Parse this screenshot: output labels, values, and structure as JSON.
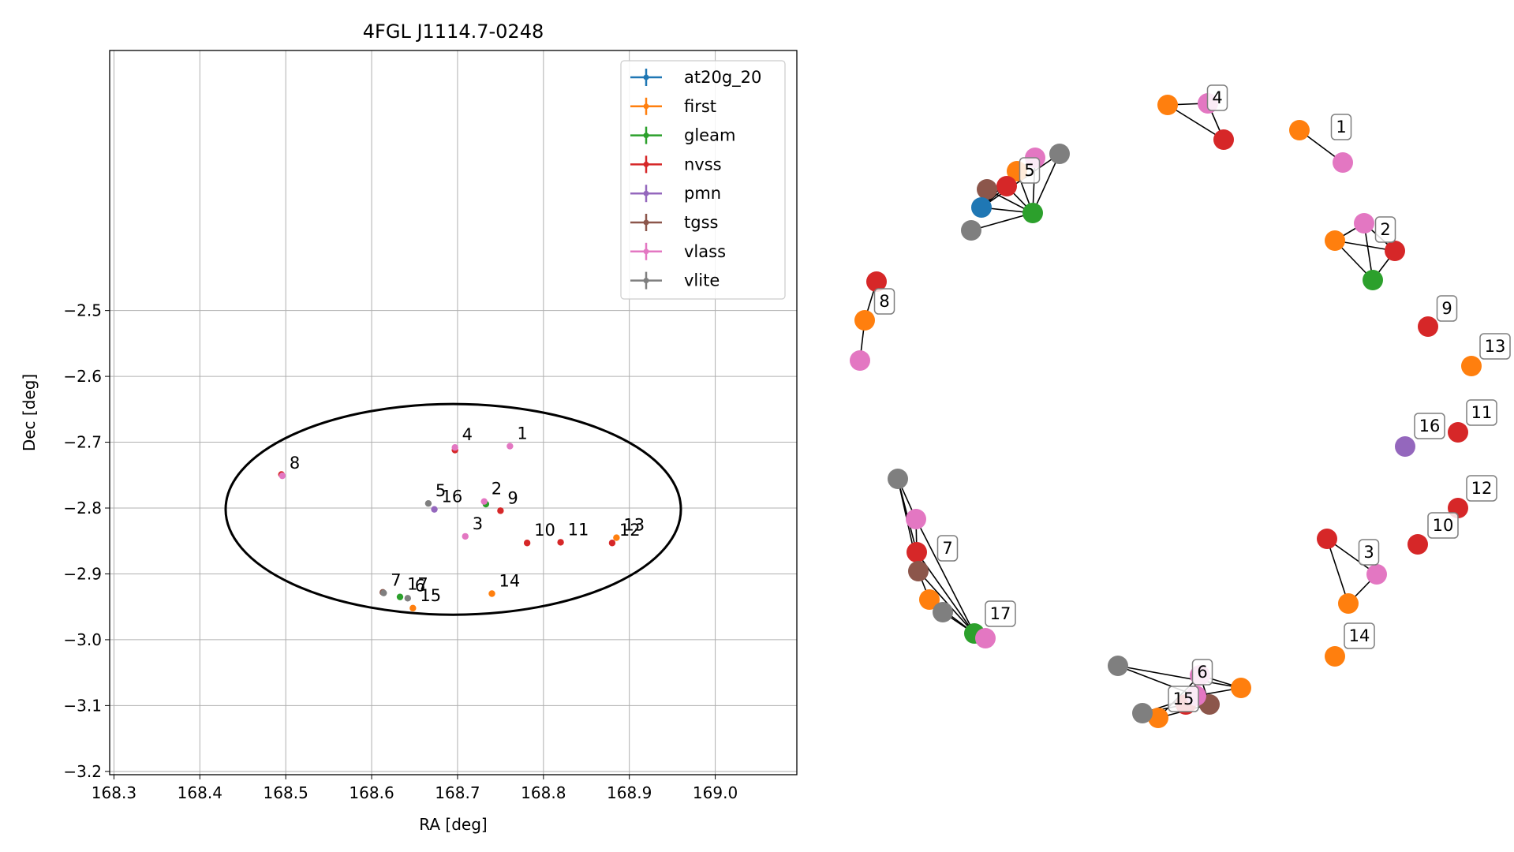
{
  "chart_data": [
    {
      "type": "scatter",
      "title": "4FGL J1114.7-0248",
      "xlabel": "RA [deg]",
      "ylabel": "Dec [deg]",
      "xlim": [
        168.295,
        169.095
      ],
      "ylim": [
        -3.205,
        -2.105
      ],
      "xticks": [
        168.3,
        168.4,
        168.5,
        168.6,
        168.7,
        168.8,
        168.9,
        169.0
      ],
      "xtick_labels": [
        "168.3",
        "168.4",
        "168.5",
        "168.6",
        "168.7",
        "168.8",
        "168.9",
        "169.0"
      ],
      "yticks": [
        -2.5,
        -2.6,
        -2.7,
        -2.8,
        -2.9,
        -3.0,
        -3.1,
        -3.2
      ],
      "ytick_labels": [
        "−2.5",
        "−2.6",
        "−2.7",
        "−2.8",
        "−2.9",
        "−3.0",
        "−3.1",
        "−3.2"
      ],
      "grid": true,
      "legend_position": "top-right",
      "ellipse": {
        "center": [
          168.695,
          -2.802
        ],
        "semi_axis_ra": 0.265,
        "semi_axis_dec": 0.16
      },
      "series": [
        {
          "name": "at20g_20",
          "color": "#1f77b4",
          "points": []
        },
        {
          "name": "first",
          "color": "#ff7f0e",
          "points": [
            [
              168.885,
              -2.845
            ],
            [
              168.74,
              -2.93
            ],
            [
              168.648,
              -2.952
            ]
          ]
        },
        {
          "name": "gleam",
          "color": "#2ca02c",
          "points": [
            [
              168.733,
              -2.794
            ],
            [
              168.633,
              -2.935
            ]
          ]
        },
        {
          "name": "nvss",
          "color": "#d62728",
          "points": [
            [
              168.495,
              -2.749
            ],
            [
              168.697,
              -2.712
            ],
            [
              168.75,
              -2.804
            ],
            [
              168.781,
              -2.853
            ],
            [
              168.82,
              -2.852
            ],
            [
              168.88,
              -2.853
            ]
          ]
        },
        {
          "name": "pmn",
          "color": "#9467bd",
          "points": [
            [
              168.673,
              -2.802
            ]
          ]
        },
        {
          "name": "tgss",
          "color": "#8c564b",
          "points": [
            [
              168.613,
              -2.928
            ]
          ]
        },
        {
          "name": "vlass",
          "color": "#e377c2",
          "points": [
            [
              168.496,
              -2.751
            ],
            [
              168.697,
              -2.708
            ],
            [
              168.761,
              -2.706
            ],
            [
              168.731,
              -2.79
            ],
            [
              168.709,
              -2.843
            ]
          ]
        },
        {
          "name": "vlite",
          "color": "#7f7f7f",
          "points": [
            [
              168.666,
              -2.793
            ],
            [
              168.614,
              -2.929
            ],
            [
              168.642,
              -2.937
            ]
          ]
        }
      ],
      "annotations": [
        {
          "text": "1",
          "x": 168.761,
          "y": -2.706
        },
        {
          "text": "2",
          "x": 168.731,
          "y": -2.79
        },
        {
          "text": "3",
          "x": 168.709,
          "y": -2.843
        },
        {
          "text": "4",
          "x": 168.697,
          "y": -2.708
        },
        {
          "text": "5",
          "x": 168.666,
          "y": -2.793
        },
        {
          "text": "6",
          "x": 168.642,
          "y": -2.937
        },
        {
          "text": "7",
          "x": 168.614,
          "y": -2.929
        },
        {
          "text": "8",
          "x": 168.496,
          "y": -2.751
        },
        {
          "text": "9",
          "x": 168.75,
          "y": -2.804
        },
        {
          "text": "10",
          "x": 168.781,
          "y": -2.853
        },
        {
          "text": "11",
          "x": 168.82,
          "y": -2.852
        },
        {
          "text": "12",
          "x": 168.88,
          "y": -2.853
        },
        {
          "text": "13",
          "x": 168.885,
          "y": -2.845
        },
        {
          "text": "14",
          "x": 168.74,
          "y": -2.93
        },
        {
          "text": "15",
          "x": 168.648,
          "y": -2.952
        },
        {
          "text": "16",
          "x": 168.673,
          "y": -2.802
        },
        {
          "text": "17",
          "x": 168.633,
          "y": -2.935
        }
      ]
    },
    {
      "type": "network",
      "nodes": [
        {
          "id": "n1",
          "series": "first"
        },
        {
          "id": "n2",
          "series": "vlass",
          "cluster": "1"
        },
        {
          "id": "n3",
          "series": "first"
        },
        {
          "id": "n4",
          "series": "vlass",
          "cluster": "4"
        },
        {
          "id": "n5",
          "series": "nvss"
        },
        {
          "id": "n6",
          "series": "vlite"
        },
        {
          "id": "n7",
          "series": "vlass"
        },
        {
          "id": "n8",
          "series": "first",
          "cluster": "5"
        },
        {
          "id": "n9",
          "series": "nvss"
        },
        {
          "id": "n10",
          "series": "tgss"
        },
        {
          "id": "n11",
          "series": "at20g_20"
        },
        {
          "id": "n12",
          "series": "gleam"
        },
        {
          "id": "n13",
          "series": "vlite"
        },
        {
          "id": "n14",
          "series": "vlass"
        },
        {
          "id": "n15",
          "series": "first"
        },
        {
          "id": "n16",
          "series": "nvss",
          "cluster": "2"
        },
        {
          "id": "n17",
          "series": "gleam"
        },
        {
          "id": "n18",
          "series": "nvss"
        },
        {
          "id": "n19",
          "series": "first",
          "cluster": "8"
        },
        {
          "id": "n20",
          "series": "vlass"
        },
        {
          "id": "n21",
          "series": "nvss",
          "cluster": "9"
        },
        {
          "id": "n22",
          "series": "first",
          "cluster": "13"
        },
        {
          "id": "n23",
          "series": "pmn",
          "cluster": "16"
        },
        {
          "id": "n24",
          "series": "nvss",
          "cluster": "11"
        },
        {
          "id": "n25",
          "series": "nvss",
          "cluster": "12"
        },
        {
          "id": "n26",
          "series": "nvss",
          "cluster": "10"
        },
        {
          "id": "n27",
          "series": "nvss"
        },
        {
          "id": "n28",
          "series": "vlass",
          "cluster": "3"
        },
        {
          "id": "n29",
          "series": "first"
        },
        {
          "id": "n30",
          "series": "first",
          "cluster": "14"
        },
        {
          "id": "n31",
          "series": "vlite"
        },
        {
          "id": "n32",
          "series": "vlass"
        },
        {
          "id": "n33",
          "series": "nvss",
          "cluster": "7"
        },
        {
          "id": "n34",
          "series": "tgss"
        },
        {
          "id": "n35",
          "series": "first"
        },
        {
          "id": "n36",
          "series": "vlite"
        },
        {
          "id": "n37",
          "series": "gleam",
          "cluster": "17"
        },
        {
          "id": "n38",
          "series": "vlass"
        },
        {
          "id": "n39",
          "series": "vlite"
        },
        {
          "id": "n40",
          "series": "vlass",
          "cluster": "6"
        },
        {
          "id": "n41",
          "series": "first"
        },
        {
          "id": "n42",
          "series": "nvss"
        },
        {
          "id": "n43",
          "series": "tgss"
        },
        {
          "id": "n44",
          "series": "first"
        },
        {
          "id": "n45",
          "series": "vlite"
        },
        {
          "id": "n46",
          "series": "vlass",
          "cluster": "15"
        }
      ],
      "edges": [
        [
          "n1",
          "n2"
        ],
        [
          "n3",
          "n4"
        ],
        [
          "n3",
          "n5"
        ],
        [
          "n4",
          "n5"
        ],
        [
          "n12",
          "n6"
        ],
        [
          "n12",
          "n7"
        ],
        [
          "n12",
          "n8"
        ],
        [
          "n12",
          "n9"
        ],
        [
          "n12",
          "n10"
        ],
        [
          "n12",
          "n11"
        ],
        [
          "n12",
          "n13"
        ],
        [
          "n8",
          "n11"
        ],
        [
          "n9",
          "n11"
        ],
        [
          "n10",
          "n11"
        ],
        [
          "n11",
          "n13"
        ],
        [
          "n8",
          "n9"
        ],
        [
          "n7",
          "n8"
        ],
        [
          "n14",
          "n15"
        ],
        [
          "n14",
          "n16"
        ],
        [
          "n14",
          "n17"
        ],
        [
          "n15",
          "n16"
        ],
        [
          "n15",
          "n17"
        ],
        [
          "n16",
          "n17"
        ],
        [
          "n18",
          "n19"
        ],
        [
          "n19",
          "n20"
        ],
        [
          "n27",
          "n28"
        ],
        [
          "n27",
          "n29"
        ],
        [
          "n28",
          "n29"
        ],
        [
          "n31",
          "n32"
        ],
        [
          "n31",
          "n33"
        ],
        [
          "n31",
          "n34"
        ],
        [
          "n32",
          "n33"
        ],
        [
          "n33",
          "n34"
        ],
        [
          "n34",
          "n35"
        ],
        [
          "n32",
          "n37"
        ],
        [
          "n33",
          "n37"
        ],
        [
          "n34",
          "n37"
        ],
        [
          "n35",
          "n37"
        ],
        [
          "n36",
          "n37"
        ],
        [
          "n37",
          "n38"
        ],
        [
          "n39",
          "n41"
        ],
        [
          "n39",
          "n46"
        ],
        [
          "n40",
          "n41"
        ],
        [
          "n40",
          "n42"
        ],
        [
          "n40",
          "n43"
        ],
        [
          "n40",
          "n44"
        ],
        [
          "n42",
          "n43"
        ],
        [
          "n43",
          "n44"
        ],
        [
          "n42",
          "n46"
        ],
        [
          "n45",
          "n46"
        ],
        [
          "n45",
          "n42"
        ],
        [
          "n41",
          "n46"
        ]
      ]
    }
  ]
}
